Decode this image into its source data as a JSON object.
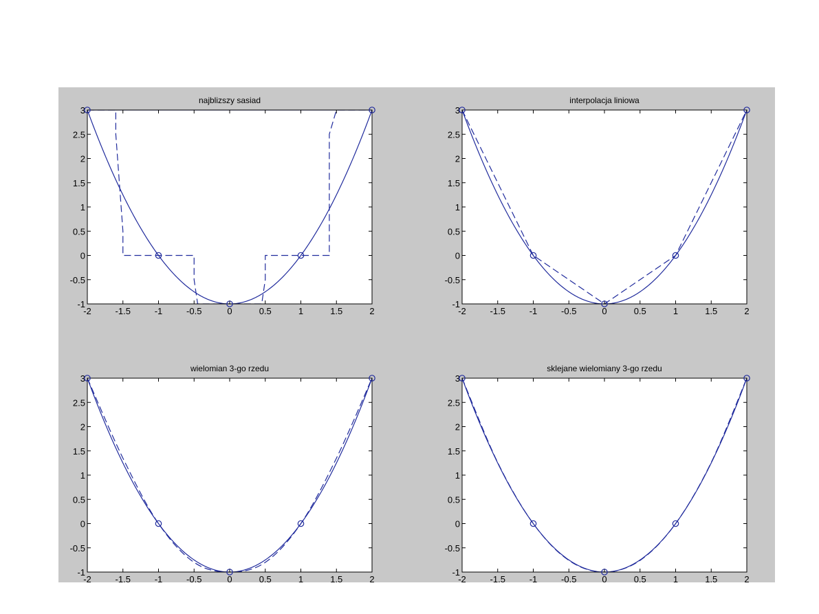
{
  "colors": {
    "figure_bg": "#c8c8c8",
    "axes_bg": "#ffffff",
    "line": "#1f2a9c",
    "marker": "#1f2a9c",
    "axis": "#000000"
  },
  "chart_data": [
    {
      "type": "line",
      "title": "najblizszy sasiad",
      "xlim": [
        -2,
        2
      ],
      "ylim": [
        -1,
        3
      ],
      "xticks": [
        -2,
        -1.5,
        -1,
        -0.5,
        0,
        0.5,
        1,
        1.5,
        2
      ],
      "xtick_labels": [
        "-2",
        "-1.5",
        "-1",
        "-0.5",
        "0",
        "0.5",
        "1",
        "1.5",
        "2"
      ],
      "yticks": [
        -1,
        -0.5,
        0,
        0.5,
        1,
        1.5,
        2,
        2.5,
        3
      ],
      "ytick_labels": [
        "-1",
        "-0.5",
        "0",
        "0.5",
        "1",
        "1.5",
        "2",
        "2.5",
        "3"
      ],
      "grid": false,
      "series": [
        {
          "style": "solid",
          "curve": "parabola",
          "x": [
            -2,
            -1.5,
            -1,
            -0.5,
            0,
            0.5,
            1,
            1.5,
            2
          ],
          "y": [
            3,
            1.25,
            0,
            -0.75,
            -1,
            -0.75,
            0,
            1.25,
            3
          ]
        },
        {
          "style": "dashed",
          "curve": "step",
          "x": [
            -2,
            -1.6,
            -1.6,
            -1.5,
            -1.5,
            -0.5,
            -0.5,
            -0.45,
            -0.45,
            0,
            0.45,
            0.45,
            0.5,
            0.5,
            1.4,
            1.4,
            1.5,
            1.5,
            2
          ],
          "y": [
            3,
            3,
            2.5,
            0.5,
            0,
            0,
            -0.5,
            -1,
            -1,
            -1,
            -1,
            -1,
            -0.5,
            0,
            0,
            2.5,
            3,
            3,
            3
          ]
        },
        {
          "style": "solid",
          "curve": "flat-top",
          "x": [
            -2,
            2
          ],
          "y": [
            3,
            3
          ]
        }
      ],
      "markers": {
        "x": [
          -2,
          -1,
          0,
          1,
          2
        ],
        "y": [
          3,
          0,
          -1,
          0,
          3
        ]
      }
    },
    {
      "type": "line",
      "title": "interpolacja liniowa",
      "xlim": [
        -2,
        2
      ],
      "ylim": [
        -1,
        3
      ],
      "xticks": [
        -2,
        -1.5,
        -1,
        -0.5,
        0,
        0.5,
        1,
        1.5,
        2
      ],
      "xtick_labels": [
        "-2",
        "-1.5",
        "-1",
        "-0.5",
        "0",
        "0.5",
        "1",
        "1.5",
        "2"
      ],
      "yticks": [
        -1,
        -0.5,
        0,
        0.5,
        1,
        1.5,
        2,
        2.5,
        3
      ],
      "ytick_labels": [
        "-1",
        "-0.5",
        "0",
        "0.5",
        "1",
        "1.5",
        "2",
        "2.5",
        "3"
      ],
      "grid": false,
      "series": [
        {
          "style": "solid",
          "curve": "parabola",
          "x": [
            -2,
            -1.5,
            -1,
            -0.5,
            0,
            0.5,
            1,
            1.5,
            2
          ],
          "y": [
            3,
            1.25,
            0,
            -0.75,
            -1,
            -0.75,
            0,
            1.25,
            3
          ]
        },
        {
          "style": "dashed",
          "curve": "polyline",
          "x": [
            -2,
            -1,
            0,
            1,
            2
          ],
          "y": [
            3,
            0,
            -1,
            0,
            3
          ]
        }
      ],
      "markers": {
        "x": [
          -2,
          -1,
          0,
          1,
          2
        ],
        "y": [
          3,
          0,
          -1,
          0,
          3
        ]
      }
    },
    {
      "type": "line",
      "title": "wielomian 3-go rzedu",
      "xlim": [
        -2,
        2
      ],
      "ylim": [
        -1,
        3
      ],
      "xticks": [
        -2,
        -1.5,
        -1,
        -0.5,
        0,
        0.5,
        1,
        1.5,
        2
      ],
      "xtick_labels": [
        "-2",
        "-1.5",
        "-1",
        "-0.5",
        "0",
        "0.5",
        "1",
        "1.5",
        "2"
      ],
      "yticks": [
        -1,
        -0.5,
        0,
        0.5,
        1,
        1.5,
        2,
        2.5,
        3
      ],
      "ytick_labels": [
        "-1",
        "-0.5",
        "0",
        "0.5",
        "1",
        "1.5",
        "2",
        "2.5",
        "3"
      ],
      "grid": false,
      "series": [
        {
          "style": "solid",
          "curve": "parabola",
          "x": [
            -2,
            -1.5,
            -1,
            -0.5,
            0,
            0.5,
            1,
            1.5,
            2
          ],
          "y": [
            3,
            1.25,
            0,
            -0.75,
            -1,
            -0.75,
            0,
            1.25,
            3
          ]
        },
        {
          "style": "dashed",
          "curve": "smooth",
          "x": [
            -2,
            -1.5,
            -1,
            -0.5,
            0,
            0.5,
            1,
            1.5,
            2
          ],
          "y": [
            3,
            1.35,
            0,
            -0.8,
            -1,
            -0.8,
            0,
            1.35,
            3
          ]
        }
      ],
      "markers": {
        "x": [
          -2,
          -1,
          0,
          1,
          2
        ],
        "y": [
          3,
          0,
          -1,
          0,
          3
        ]
      }
    },
    {
      "type": "line",
      "title": "sklejane wielomiany 3-go rzedu",
      "xlim": [
        -2,
        2
      ],
      "ylim": [
        -1,
        3
      ],
      "xticks": [
        -2,
        -1.5,
        -1,
        -0.5,
        0,
        0.5,
        1,
        1.5,
        2
      ],
      "xtick_labels": [
        "-2",
        "-1.5",
        "-1",
        "-0.5",
        "0",
        "0.5",
        "1",
        "1.5",
        "2"
      ],
      "yticks": [
        -1,
        -0.5,
        0,
        0.5,
        1,
        1.5,
        2,
        2.5,
        3
      ],
      "ytick_labels": [
        "-1",
        "-0.5",
        "0",
        "0.5",
        "1",
        "1.5",
        "2",
        "2.5",
        "3"
      ],
      "grid": false,
      "series": [
        {
          "style": "solid",
          "curve": "parabola",
          "x": [
            -2,
            -1.5,
            -1,
            -0.5,
            0,
            0.5,
            1,
            1.5,
            2
          ],
          "y": [
            3,
            1.25,
            0,
            -0.75,
            -1,
            -0.75,
            0,
            1.25,
            3
          ]
        },
        {
          "style": "dashed",
          "curve": "smooth",
          "x": [
            -2,
            -1.5,
            -1,
            -0.5,
            0,
            0.5,
            1,
            1.5,
            2
          ],
          "y": [
            3,
            1.26,
            0,
            -0.76,
            -1,
            -0.76,
            0,
            1.26,
            3
          ]
        }
      ],
      "markers": {
        "x": [
          -2,
          -1,
          0,
          1,
          2
        ],
        "y": [
          3,
          0,
          -1,
          0,
          3
        ]
      }
    }
  ]
}
